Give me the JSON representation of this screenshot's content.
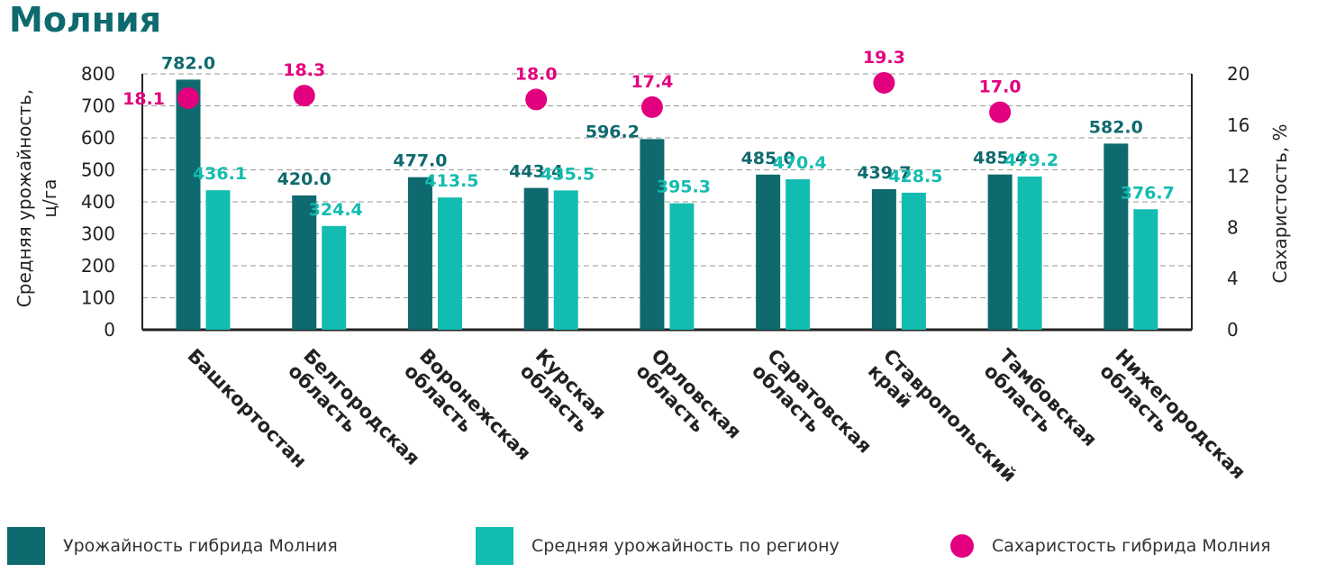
{
  "title": "Молния",
  "colors": {
    "primary": "#0e6a6e",
    "secondary": "#13bcb0",
    "accent": "#e3007e",
    "axis": "#222222",
    "grid": "#9a9a9a"
  },
  "chart_data": {
    "type": "bar",
    "title": "Молния",
    "ylabel_lines": [
      "Средняя урожайность,",
      "ц/га"
    ],
    "y2label": "Сахаристость, %",
    "ylim": [
      0,
      800
    ],
    "y2lim": [
      0,
      20
    ],
    "yticks": [
      0,
      100,
      200,
      300,
      400,
      500,
      600,
      700,
      800
    ],
    "y2ticks": [
      0,
      4,
      8,
      12,
      16,
      20
    ],
    "grid": true,
    "legend_position": "bottom",
    "categories": [
      [
        "Башкортостан"
      ],
      [
        "Белгородская",
        "область"
      ],
      [
        "Воронежская",
        "область"
      ],
      [
        "Курская",
        "область"
      ],
      [
        "Орловская",
        "область"
      ],
      [
        "Саратовская",
        "область"
      ],
      [
        "Ставропольский",
        "край"
      ],
      [
        "Тамбовская",
        "область"
      ],
      [
        "Нижегородская",
        "область"
      ]
    ],
    "series": [
      {
        "name": "Урожайность гибрида Молния",
        "type": "bar",
        "axis": "left",
        "values": [
          782.0,
          420.0,
          477.0,
          443.4,
          596.2,
          485.0,
          439.7,
          485.4,
          582.0
        ],
        "labels": [
          "782.0",
          "420.0",
          "477.0",
          "443.4",
          "596.2",
          "485.0",
          "439.7",
          "485.4",
          "582.0"
        ]
      },
      {
        "name": "Средняя урожайность по региону",
        "type": "bar",
        "axis": "left",
        "values": [
          436.1,
          324.4,
          413.5,
          435.5,
          395.3,
          470.4,
          428.5,
          479.2,
          376.7
        ],
        "labels": [
          "436.1",
          "324.4",
          "413.5",
          "435.5",
          "395.3",
          "470.4",
          "428.5",
          "479.2",
          "376.7"
        ]
      },
      {
        "name": "Сахаристость гибрида Молния",
        "type": "scatter",
        "axis": "right",
        "values": [
          18.1,
          18.3,
          null,
          18.0,
          17.4,
          null,
          19.3,
          17.0,
          null
        ],
        "labels": [
          "18.1",
          "18.3",
          null,
          "18.0",
          "17.4",
          null,
          "19.3",
          "17.0",
          null
        ]
      }
    ]
  }
}
